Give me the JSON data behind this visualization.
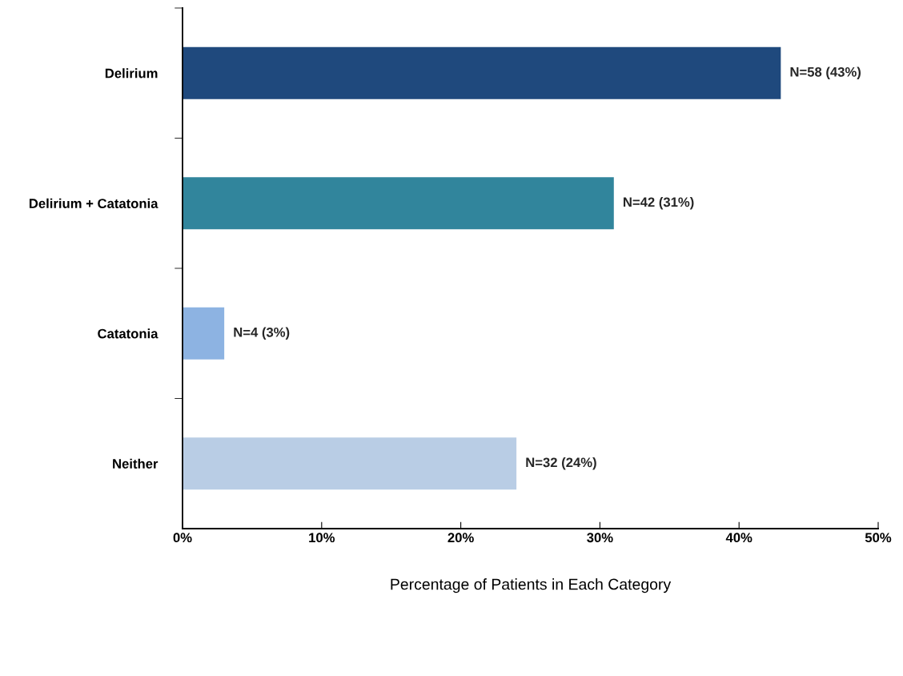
{
  "chart_data": {
    "type": "bar",
    "orientation": "horizontal",
    "xlabel": "Percentage of Patients in Each Category",
    "categories": [
      "Delirium",
      "Delirium + Catatonia",
      "Catatonia",
      "Neither"
    ],
    "values": [
      43,
      31,
      3,
      24
    ],
    "colors": [
      "#1f497d",
      "#31859c",
      "#8db3e2",
      "#b9cde5"
    ],
    "value_labels": [
      "N=58 (43%)",
      "N=42 (31%)",
      "N=4 (3%)",
      "N=32 (24%)"
    ],
    "xlim": [
      0,
      50
    ],
    "xticks": [
      {
        "value": 0,
        "label": "0%"
      },
      {
        "value": 10,
        "label": "10%"
      },
      {
        "value": 20,
        "label": "20%"
      },
      {
        "value": 30,
        "label": "30%"
      },
      {
        "value": 40,
        "label": "40%"
      },
      {
        "value": 50,
        "label": "50%"
      }
    ],
    "grid": false,
    "legend": false
  }
}
